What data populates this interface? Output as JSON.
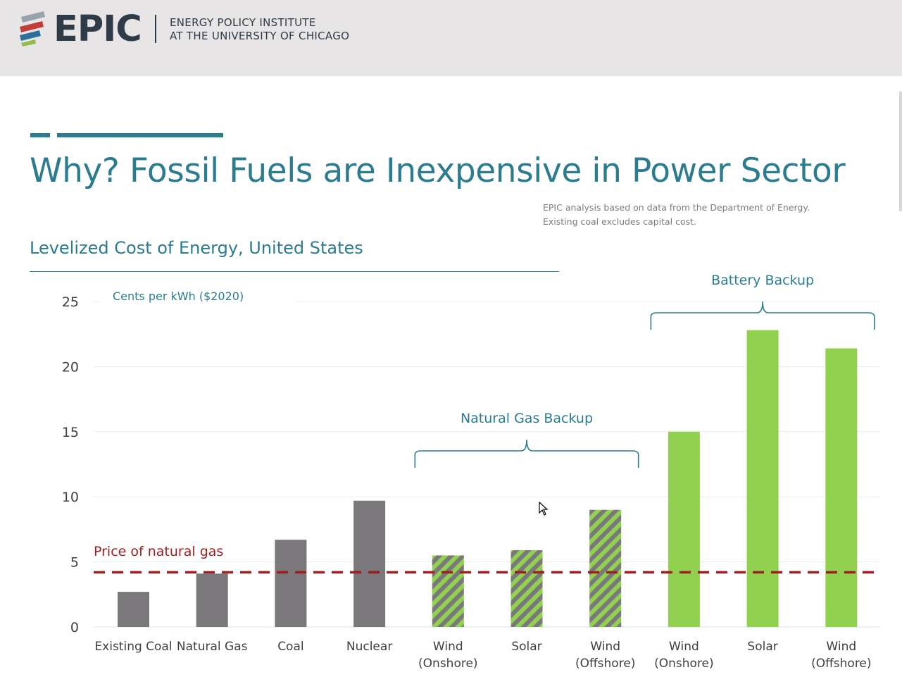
{
  "header": {
    "logo_text": "EPIC",
    "institute_line1": "ENERGY POLICY INSTITUTE",
    "institute_line2": "AT THE UNIVERSITY OF CHICAGO"
  },
  "slide": {
    "title": "Why? Fossil Fuels are Inexpensive in Power Sector",
    "source_line1": "EPIC analysis based on data from the Department of Energy.",
    "source_line2": "Existing coal excludes capital cost.",
    "subtitle": "Levelized Cost of Energy, United States"
  },
  "colors": {
    "accent": "#2b7c8e",
    "fossil_bar": "#7a787b",
    "renewable_bar": "#92d050",
    "gas_price_line": "#9c1f1f"
  },
  "chart_data": {
    "type": "bar",
    "unit_label": "Cents per kWh ($2020)",
    "ylim": [
      0,
      25
    ],
    "yticks": [
      "0",
      "5",
      "10",
      "15",
      "20",
      "25"
    ],
    "grid": true,
    "categories": [
      {
        "label": "Existing Coal",
        "value": 2.7,
        "style": "fossil"
      },
      {
        "label": "Natural Gas",
        "value": 4.1,
        "style": "fossil"
      },
      {
        "label": "Coal",
        "value": 6.7,
        "style": "fossil"
      },
      {
        "label": "Nuclear",
        "value": 9.7,
        "style": "fossil"
      },
      {
        "label": "Wind (Onshore)",
        "value": 5.5,
        "style": "hatched"
      },
      {
        "label": "Solar",
        "value": 5.9,
        "style": "hatched"
      },
      {
        "label": "Wind (Offshore)",
        "value": 9.0,
        "style": "hatched"
      },
      {
        "label": "Wind (Onshore)",
        "value": 15.0,
        "style": "solid-green"
      },
      {
        "label": "Solar",
        "value": 22.8,
        "style": "solid-green"
      },
      {
        "label": "Wind (Offshore)",
        "value": 21.4,
        "style": "solid-green"
      }
    ],
    "reference_line": {
      "label": "Price of natural gas",
      "value": 4.2
    },
    "groups": [
      {
        "label": "Natural Gas Backup",
        "from": 4,
        "to": 6
      },
      {
        "label": "Battery Backup",
        "from": 7,
        "to": 9
      }
    ]
  }
}
